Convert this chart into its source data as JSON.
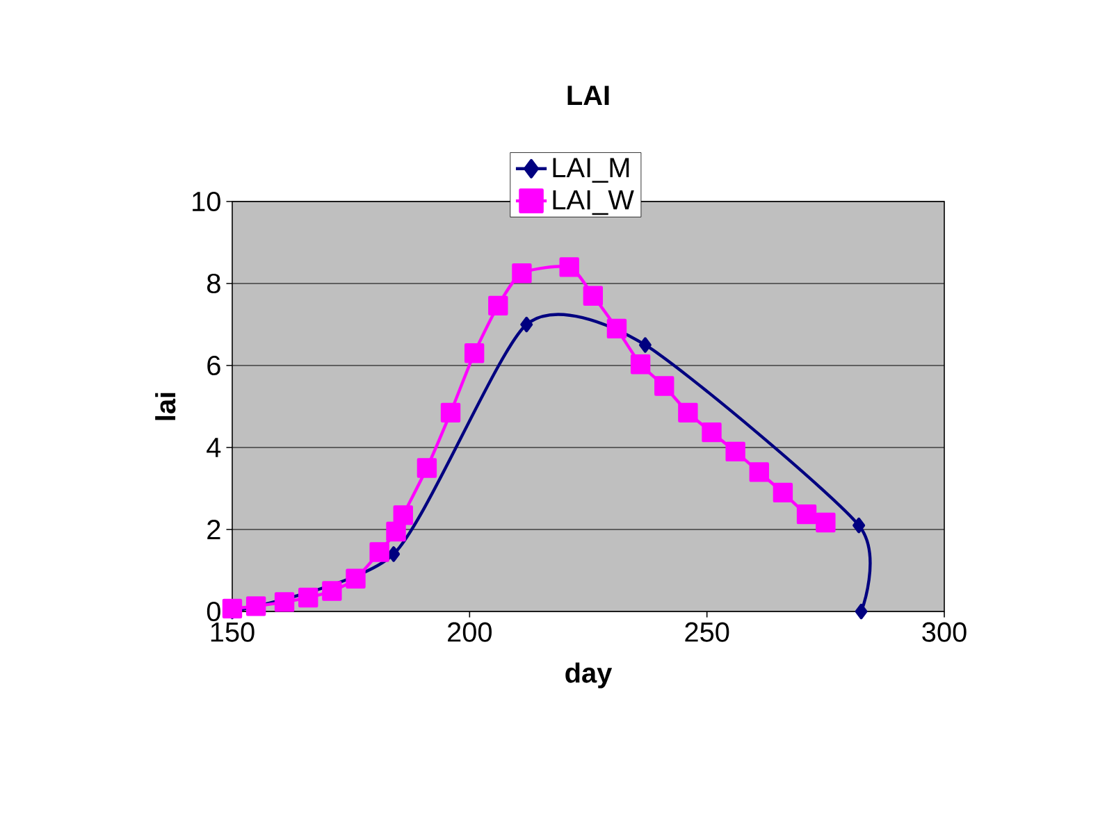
{
  "chart_data": {
    "type": "line",
    "title": "LAI",
    "xlabel": "day",
    "ylabel": "lai",
    "xlim": [
      150,
      300
    ],
    "xticks": [
      150,
      200,
      250,
      300
    ],
    "ylim": [
      0,
      10
    ],
    "yticks": [
      0,
      2,
      4,
      6,
      8,
      10
    ],
    "grid": "y",
    "legend": "top",
    "series": [
      {
        "name": "LAI_M",
        "color": "#000080",
        "marker": "diamond",
        "x": [
          150,
          184,
          212,
          237,
          282,
          282.5
        ],
        "values": [
          0,
          1.4,
          7.0,
          6.5,
          2.1,
          0
        ]
      },
      {
        "name": "LAI_W",
        "color": "#ff00ff",
        "marker": "square",
        "x": [
          150,
          155,
          161,
          166,
          171,
          176,
          181,
          184.5,
          186,
          191,
          196,
          201,
          206,
          211,
          221,
          226,
          231,
          236,
          241,
          246,
          251,
          256,
          261,
          266,
          271,
          275
        ],
        "values": [
          0.07,
          0.13,
          0.23,
          0.34,
          0.5,
          0.8,
          1.45,
          1.95,
          2.35,
          3.5,
          4.85,
          6.3,
          7.46,
          8.25,
          8.4,
          7.7,
          6.9,
          6.03,
          5.5,
          4.85,
          4.37,
          3.9,
          3.4,
          2.9,
          2.37,
          2.17
        ]
      }
    ]
  }
}
